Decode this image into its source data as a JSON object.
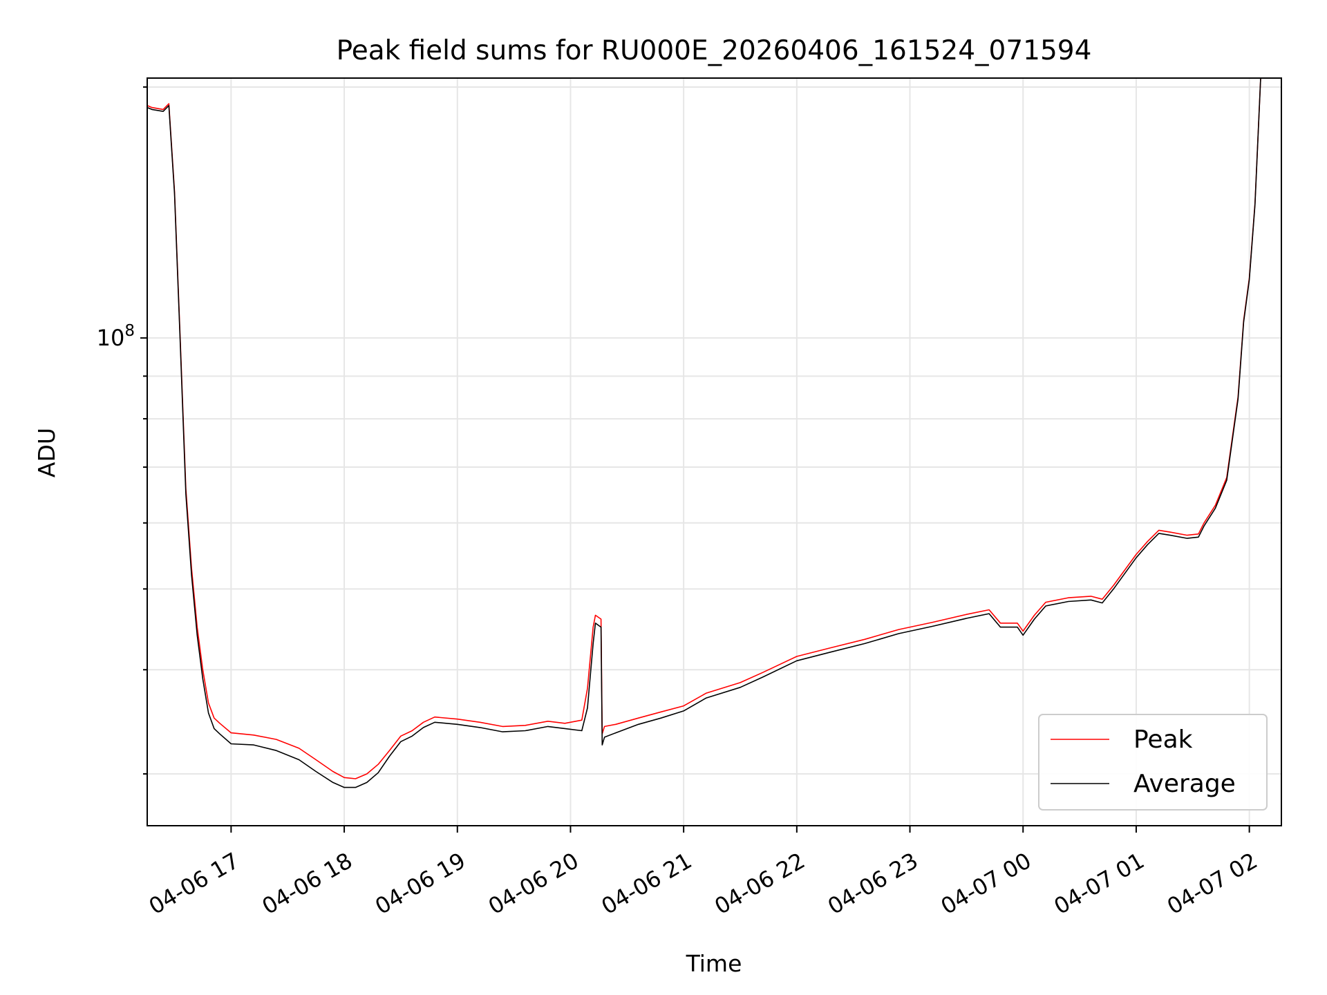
{
  "chart_data": {
    "type": "line",
    "title": "Peak field sums for RU000E_20260406_161524_071594",
    "xlabel": "Time",
    "ylabel": "ADU",
    "yscale": "log",
    "grid": true,
    "legend_position": "lower-right",
    "x_ticks": [
      "04-06 17",
      "04-06 18",
      "04-06 19",
      "04-06 20",
      "04-06 21",
      "04-06 22",
      "04-06 23",
      "04-07 00",
      "04-07 01",
      "04-07 02"
    ],
    "x_tick_hours": [
      17,
      18,
      19,
      20,
      21,
      22,
      23,
      24,
      25,
      26
    ],
    "y_major_tick": {
      "value": 100000000,
      "base": "10",
      "exponent": "8"
    },
    "xlim_hours": [
      16.2586,
      26.2833
    ],
    "ylim": [
      26000000,
      205000000
    ],
    "series": [
      {
        "name": "Peak",
        "color": "#ff0000",
        "x_hours": [
          16.259,
          16.3,
          16.4,
          16.45,
          16.5,
          16.55,
          16.6,
          16.65,
          16.7,
          16.75,
          16.8,
          16.85,
          16.9,
          17.0,
          17.2,
          17.4,
          17.6,
          17.75,
          17.9,
          18.0,
          18.1,
          18.2,
          18.3,
          18.4,
          18.5,
          18.6,
          18.7,
          18.8,
          19.0,
          19.2,
          19.4,
          19.6,
          19.8,
          19.95,
          20.1,
          20.15,
          20.2,
          20.22,
          20.27,
          20.28,
          20.3,
          20.4,
          20.6,
          20.8,
          21.0,
          21.2,
          21.5,
          21.7,
          22.0,
          22.3,
          22.6,
          22.9,
          23.2,
          23.5,
          23.7,
          23.8,
          23.95,
          24.0,
          24.1,
          24.2,
          24.4,
          24.6,
          24.7,
          24.8,
          25.0,
          25.1,
          25.2,
          25.3,
          25.45,
          25.55,
          25.6,
          25.7,
          25.8,
          25.9,
          25.95,
          26.0,
          26.05,
          26.1
        ],
        "values": [
          190000000,
          189000000,
          188000000,
          191000000,
          150000000,
          100000000,
          66000000,
          53000000,
          45000000,
          40000000,
          36500000,
          35000000,
          34500000,
          33600000,
          33400000,
          33000000,
          32200000,
          31200000,
          30200000,
          29700000,
          29600000,
          30000000,
          30800000,
          32000000,
          33300000,
          33800000,
          34600000,
          35100000,
          34900000,
          34600000,
          34200000,
          34300000,
          34700000,
          34500000,
          34800000,
          38000000,
          45000000,
          46500000,
          46000000,
          33500000,
          34200000,
          34400000,
          35000000,
          35600000,
          36200000,
          37500000,
          38600000,
          39700000,
          41500000,
          42500000,
          43500000,
          44700000,
          45600000,
          46600000,
          47200000,
          45500000,
          45500000,
          44500000,
          46500000,
          48200000,
          48800000,
          49000000,
          48600000,
          50500000,
          55000000,
          57000000,
          58800000,
          58500000,
          58000000,
          58200000,
          60000000,
          63000000,
          68000000,
          85000000,
          105000000,
          118000000,
          145000000,
          205000000
        ]
      },
      {
        "name": "Average",
        "color": "#000000",
        "x_hours": [
          16.259,
          16.3,
          16.4,
          16.45,
          16.5,
          16.55,
          16.6,
          16.65,
          16.7,
          16.75,
          16.8,
          16.85,
          16.9,
          17.0,
          17.2,
          17.4,
          17.6,
          17.75,
          17.9,
          18.0,
          18.1,
          18.2,
          18.3,
          18.4,
          18.5,
          18.6,
          18.7,
          18.8,
          19.0,
          19.2,
          19.4,
          19.6,
          19.8,
          19.95,
          20.1,
          20.15,
          20.2,
          20.22,
          20.27,
          20.28,
          20.3,
          20.4,
          20.6,
          20.8,
          21.0,
          21.2,
          21.5,
          21.7,
          22.0,
          22.3,
          22.6,
          22.9,
          23.2,
          23.5,
          23.7,
          23.8,
          23.95,
          24.0,
          24.1,
          24.2,
          24.4,
          24.6,
          24.7,
          24.8,
          25.0,
          25.1,
          25.2,
          25.3,
          25.45,
          25.55,
          25.6,
          25.7,
          25.8,
          25.9,
          25.95,
          26.0,
          26.05,
          26.1
        ],
        "values": [
          189000000,
          188000000,
          187000000,
          190000000,
          149000000,
          99000000,
          65000000,
          52000000,
          44000000,
          39000000,
          35500000,
          34000000,
          33500000,
          32600000,
          32500000,
          32000000,
          31200000,
          30200000,
          29300000,
          28900000,
          28900000,
          29300000,
          30100000,
          31500000,
          32800000,
          33300000,
          34100000,
          34600000,
          34400000,
          34100000,
          33700000,
          33800000,
          34200000,
          34000000,
          33800000,
          36000000,
          43000000,
          45500000,
          45000000,
          32500000,
          33200000,
          33600000,
          34400000,
          35000000,
          35700000,
          37000000,
          38100000,
          39200000,
          41000000,
          42000000,
          43000000,
          44200000,
          45100000,
          46100000,
          46700000,
          45000000,
          45000000,
          44000000,
          46000000,
          47700000,
          48300000,
          48500000,
          48100000,
          50000000,
          54500000,
          56500000,
          58300000,
          58000000,
          57500000,
          57700000,
          59500000,
          62500000,
          67500000,
          84500000,
          104500000,
          117500000,
          144500000,
          205000000
        ]
      }
    ]
  }
}
